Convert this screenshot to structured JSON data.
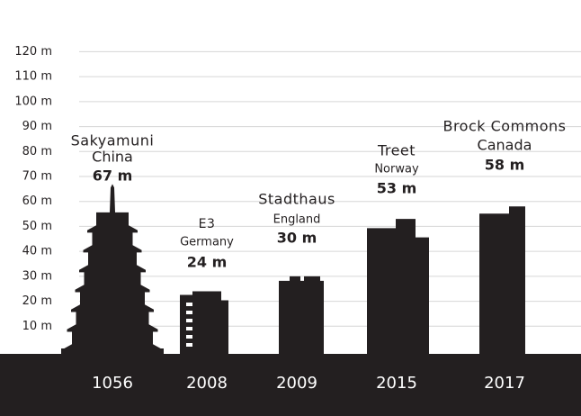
{
  "chart_data": {
    "type": "building-silhouettes",
    "categories": [
      "1056",
      "2008",
      "2009",
      "2015",
      "2017"
    ],
    "names": [
      "Sakyamuni",
      "E3",
      "Stadthaus",
      "Treet",
      "Brock Commons"
    ],
    "countries": [
      "China",
      "Germany",
      "England",
      "Norway",
      "Canada"
    ],
    "values": [
      67,
      24,
      30,
      53,
      58
    ],
    "value_labels": [
      "67 m",
      "24 m",
      "30 m",
      "53 m",
      "58 m"
    ],
    "color": "#231f20",
    "ylim": [
      0,
      140
    ],
    "yticks": [
      {
        "value": 10,
        "label": "10 m"
      },
      {
        "value": 20,
        "label": "20 m"
      },
      {
        "value": 30,
        "label": "30 m"
      },
      {
        "value": 40,
        "label": "40 m"
      },
      {
        "value": 50,
        "label": "50 m"
      },
      {
        "value": 60,
        "label": "60 m"
      },
      {
        "value": 70,
        "label": "70 m"
      },
      {
        "value": 80,
        "label": "80 m"
      },
      {
        "value": 90,
        "label": "90 m"
      },
      {
        "value": 100,
        "label": "100 m"
      },
      {
        "value": 110,
        "label": "110 m"
      },
      {
        "value": 120,
        "label": "120 m"
      }
    ],
    "grid": true
  }
}
